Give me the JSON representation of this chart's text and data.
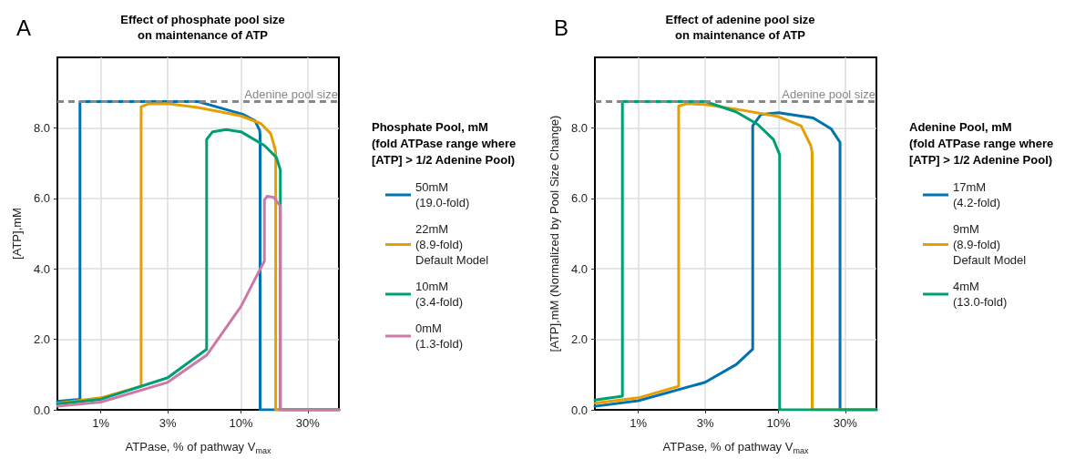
{
  "chart_data": [
    {
      "type": "line",
      "title": "Effect of phosphate pool size\non maintenance of ATP",
      "xlabel": "ATPase, % of pathway V$_{max}$",
      "ylabel": "[ATP],mM",
      "legend_title": "Phosphate Pool, mM\n(fold ATPase range where\n[ATP] > 1/2 Adenine Pool)",
      "annotations": [
        "A"
      ],
      "log": "x",
      "grid": true,
      "legend": "right",
      "line_style": "solid",
      "xlim": [
        0.49,
        50
      ],
      "xticks": [
        {
          "value": 1,
          "label": "1%"
        },
        {
          "value": 3,
          "label": "3%"
        },
        {
          "value": 10,
          "label": "10%"
        },
        {
          "value": 30,
          "label": "30%"
        }
      ],
      "ylim": [
        0,
        10
      ],
      "yticks": [
        {
          "value": 0,
          "label": "0.0"
        },
        {
          "value": 2,
          "label": "2.0"
        },
        {
          "value": 4,
          "label": "4.0"
        },
        {
          "value": 6,
          "label": "6.0"
        },
        {
          "value": 8,
          "label": "8.0"
        }
      ],
      "ref_lines": [
        {
          "axis": "y",
          "value": 8.75,
          "label": "Adenine pool size",
          "color": "#888888",
          "line_style": "dashed"
        }
      ],
      "series": [
        {
          "name": "50mM\n(19.0-fold)",
          "color": "#0072b2",
          "x": [
            0.49,
            0.71,
            0.71,
            4.9,
            10.4,
            12.6,
            13.6,
            13.7,
            13.7,
            50
          ],
          "values": [
            0.24,
            0.3,
            8.75,
            8.75,
            8.38,
            8.2,
            7.93,
            7.8,
            0,
            0
          ]
        },
        {
          "name": "22mM\n(8.9-fold)\nDefault Model",
          "color": "#e69f00",
          "x": [
            0.49,
            1,
            1.94,
            1.94,
            2.19,
            3,
            4.9,
            10,
            13.9,
            16.3,
            17.5,
            17.7,
            17.7,
            50
          ],
          "values": [
            0.19,
            0.34,
            0.67,
            8.6,
            8.68,
            8.69,
            8.58,
            8.34,
            8.12,
            7.84,
            7.41,
            7.3,
            0,
            0
          ]
        },
        {
          "name": "10mM\n(3.4-fold)",
          "color": "#009e73",
          "x": [
            0.49,
            1,
            3,
            5.69,
            5.69,
            6.28,
            7.86,
            10,
            14.7,
            17.9,
            19.1,
            19.1,
            50
          ],
          "values": [
            0.17,
            0.3,
            0.91,
            1.72,
            7.67,
            7.89,
            7.95,
            7.89,
            7.5,
            7.16,
            6.81,
            0,
            0
          ]
        },
        {
          "name": "0mM\n(1.3-fold)",
          "color": "#cc79a7",
          "x": [
            0.49,
            1,
            3,
            5.69,
            10,
            12.6,
            14.7,
            14.7,
            15.4,
            17.1,
            19.1,
            19.1,
            50
          ],
          "values": [
            0.1,
            0.22,
            0.78,
            1.55,
            2.93,
            3.71,
            4.22,
            5.95,
            6.06,
            6.03,
            5.78,
            0,
            0
          ]
        }
      ]
    },
    {
      "type": "line",
      "title": "Effect of adenine pool size\non maintenance of ATP",
      "xlabel": "ATPase, % of pathway V$_{max}$",
      "ylabel": "[ATP],mM (Normalized by Pool Size Change)",
      "legend_title": "Adenine Pool, mM\n(fold ATPase range where\n[ATP] > 1/2 Adenine Pool)",
      "annotations": [
        "B"
      ],
      "log": "x",
      "grid": true,
      "legend": "right",
      "line_style": "solid",
      "xlim": [
        0.49,
        50
      ],
      "xticks": [
        {
          "value": 1,
          "label": "1%"
        },
        {
          "value": 3,
          "label": "3%"
        },
        {
          "value": 10,
          "label": "10%"
        },
        {
          "value": 30,
          "label": "30%"
        }
      ],
      "ylim": [
        0,
        10
      ],
      "yticks": [
        {
          "value": 0,
          "label": "0.0"
        },
        {
          "value": 2,
          "label": "2.0"
        },
        {
          "value": 4,
          "label": "4.0"
        },
        {
          "value": 6,
          "label": "6.0"
        },
        {
          "value": 8,
          "label": "8.0"
        }
      ],
      "ref_lines": [
        {
          "axis": "y",
          "value": 8.75,
          "label": "Adenine pool size",
          "color": "#888888",
          "line_style": "dashed"
        }
      ],
      "series": [
        {
          "name": "17mM\n(4.2-fold)",
          "color": "#0072b2",
          "x": [
            0.49,
            1,
            3,
            5.01,
            6.55,
            6.55,
            7.5,
            10,
            17.7,
            23.8,
            27.5,
            27.5,
            50
          ],
          "values": [
            0.1,
            0.26,
            0.78,
            1.29,
            1.72,
            8.06,
            8.38,
            8.43,
            8.28,
            7.97,
            7.59,
            0,
            0
          ]
        },
        {
          "name": "9mM\n(8.9-fold)\nDefault Model",
          "color": "#e69f00",
          "x": [
            0.49,
            1,
            1.94,
            1.94,
            2.24,
            3,
            5.01,
            10,
            14.5,
            17,
            17.4,
            17.4,
            50
          ],
          "values": [
            0.19,
            0.34,
            0.67,
            8.62,
            8.69,
            8.66,
            8.53,
            8.32,
            8.06,
            7.5,
            7.3,
            0,
            0
          ]
        },
        {
          "name": "4mM\n(13.0-fold)",
          "color": "#009e73",
          "x": [
            0.49,
            0.77,
            0.77,
            3,
            5.01,
            7.1,
            9.2,
            10.2,
            10.2,
            50
          ],
          "values": [
            0.28,
            0.39,
            8.75,
            8.75,
            8.45,
            8.1,
            7.67,
            7.24,
            0,
            0
          ]
        }
      ]
    }
  ]
}
